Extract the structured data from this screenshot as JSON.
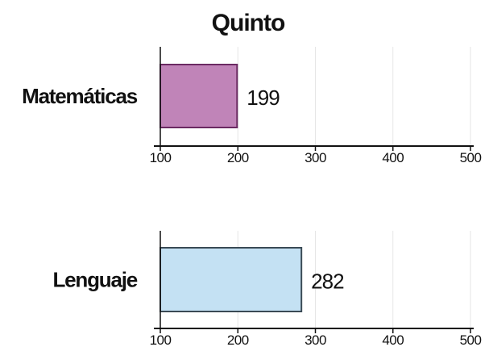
{
  "chart_data": {
    "type": "bar",
    "title": "Quinto",
    "xlim": [
      100,
      500
    ],
    "ticks": [
      "100",
      "200",
      "300",
      "400",
      "500"
    ],
    "grid": true,
    "panels": [
      {
        "category": "Matemáticas",
        "value": 199,
        "value_label": "199",
        "color": "#c084b8",
        "stroke": "#6b2a62"
      },
      {
        "category": "Lenguaje",
        "value": 282,
        "value_label": "282",
        "color": "#c4e1f3",
        "stroke": "#3a4a55"
      }
    ]
  }
}
